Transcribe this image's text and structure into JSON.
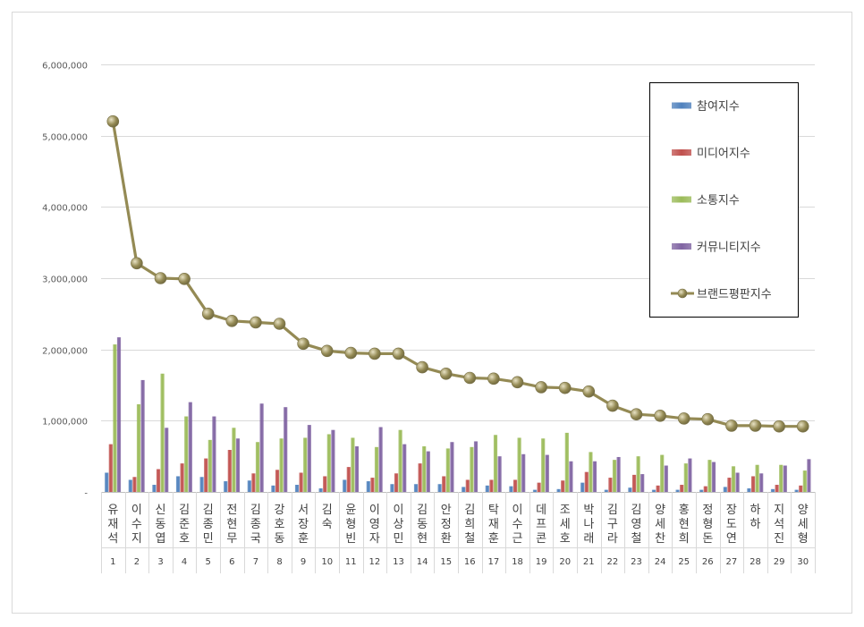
{
  "chart_data": {
    "type": "bar",
    "y_ticks": [
      "6,000,000",
      "5,000,000",
      "4,000,000",
      "3,000,000",
      "2,000,000",
      "1,000,000",
      "-"
    ],
    "ylim": [
      0,
      6000000
    ],
    "grid": true,
    "legend_position": "top-right",
    "categories": [
      "유재석",
      "이수지",
      "신동엽",
      "김준호",
      "김종민",
      "전현무",
      "김종국",
      "강호동",
      "서장훈",
      "김숙",
      "윤형빈",
      "이영자",
      "이상민",
      "김동현",
      "안정환",
      "김희철",
      "탁재훈",
      "이수근",
      "데프콘",
      "조세호",
      "박나래",
      "김구라",
      "김영철",
      "양세찬",
      "홍현희",
      "정형돈",
      "장도연",
      "하하",
      "지석진",
      "양세형"
    ],
    "ranks": [
      "1",
      "2",
      "3",
      "4",
      "5",
      "6",
      "7",
      "8",
      "9",
      "10",
      "11",
      "12",
      "13",
      "14",
      "15",
      "16",
      "17",
      "18",
      "19",
      "20",
      "21",
      "22",
      "23",
      "24",
      "25",
      "26",
      "27",
      "28",
      "29",
      "30"
    ],
    "series": [
      {
        "name": "참여지수",
        "kind": "bar",
        "color": "#4f81bd",
        "values": [
          270000,
          170000,
          100000,
          220000,
          210000,
          150000,
          160000,
          90000,
          100000,
          50000,
          170000,
          150000,
          110000,
          110000,
          110000,
          70000,
          90000,
          80000,
          30000,
          40000,
          130000,
          30000,
          60000,
          30000,
          30000,
          30000,
          70000,
          50000,
          40000,
          30000
        ]
      },
      {
        "name": "미디어지수",
        "kind": "bar",
        "color": "#c0504d",
        "values": [
          670000,
          210000,
          320000,
          400000,
          470000,
          590000,
          260000,
          310000,
          270000,
          220000,
          350000,
          200000,
          260000,
          400000,
          220000,
          170000,
          170000,
          170000,
          130000,
          160000,
          280000,
          200000,
          240000,
          90000,
          100000,
          80000,
          200000,
          220000,
          100000,
          90000
        ]
      },
      {
        "name": "소통지수",
        "kind": "bar",
        "color": "#9bbb59",
        "values": [
          2070000,
          1230000,
          1660000,
          1060000,
          730000,
          900000,
          700000,
          750000,
          760000,
          810000,
          760000,
          630000,
          870000,
          640000,
          610000,
          630000,
          800000,
          760000,
          750000,
          830000,
          560000,
          450000,
          500000,
          520000,
          400000,
          450000,
          360000,
          380000,
          380000,
          300000
        ]
      },
      {
        "name": "커뮤니티지수",
        "kind": "bar",
        "color": "#8064a2",
        "values": [
          2170000,
          1570000,
          900000,
          1260000,
          1060000,
          750000,
          1240000,
          1190000,
          940000,
          870000,
          640000,
          910000,
          670000,
          570000,
          700000,
          710000,
          500000,
          530000,
          520000,
          430000,
          430000,
          490000,
          250000,
          370000,
          470000,
          420000,
          270000,
          260000,
          370000,
          460000
        ]
      },
      {
        "name": "브랜드평판지수",
        "kind": "line",
        "color": "#948a54",
        "values": [
          5200000,
          3210000,
          3000000,
          2990000,
          2500000,
          2400000,
          2380000,
          2360000,
          2080000,
          1980000,
          1950000,
          1940000,
          1940000,
          1750000,
          1660000,
          1600000,
          1590000,
          1540000,
          1470000,
          1460000,
          1410000,
          1210000,
          1090000,
          1070000,
          1030000,
          1020000,
          930000,
          930000,
          920000,
          920000
        ]
      }
    ]
  }
}
